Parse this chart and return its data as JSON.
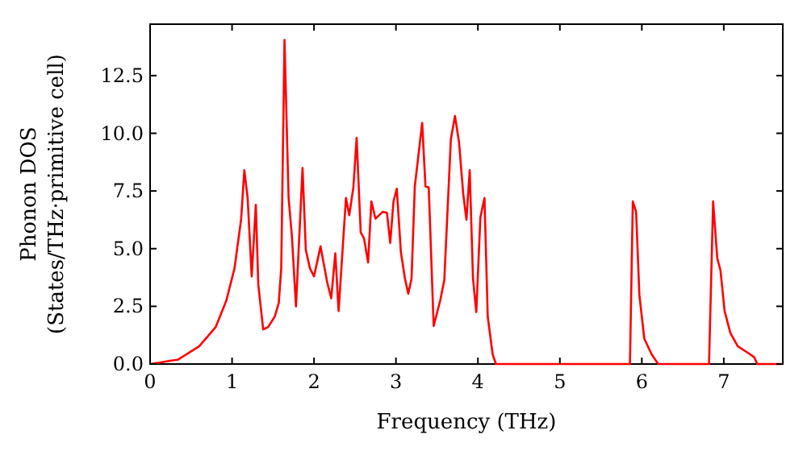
{
  "chart_data": {
    "type": "line",
    "xlabel": "Frequency (THz)",
    "ylabel": "Phonon DOS\n(States/THz·primitive cell)",
    "xlim": [
      0,
      7.72
    ],
    "ylim": [
      0,
      14.73
    ],
    "xticks": [
      0,
      1,
      2,
      3,
      4,
      5,
      6,
      7
    ],
    "yticks": [
      {
        "value": 0,
        "label": "0.0"
      },
      {
        "value": 2.5,
        "label": "2.5"
      },
      {
        "value": 5,
        "label": "5.0"
      },
      {
        "value": 7.5,
        "label": "7.5"
      },
      {
        "value": 10,
        "label": "10.0"
      },
      {
        "value": 12.5,
        "label": "12.5"
      }
    ],
    "grid": false,
    "marker": "none",
    "line_style": "solid",
    "series": [
      {
        "color": "#ff0000",
        "x": [
          0,
          0.34,
          0.6,
          0.8,
          0.93,
          1.03,
          1.11,
          1.15,
          1.19,
          1.24,
          1.29,
          1.32,
          1.38,
          1.44,
          1.52,
          1.57,
          1.6,
          1.64,
          1.69,
          1.73,
          1.78,
          1.86,
          1.9,
          1.95,
          2.0,
          2.08,
          2.16,
          2.21,
          2.26,
          2.3,
          2.39,
          2.43,
          2.48,
          2.52,
          2.57,
          2.61,
          2.66,
          2.7,
          2.75,
          2.84,
          2.89,
          2.93,
          2.97,
          3.01,
          3.06,
          3.11,
          3.15,
          3.19,
          3.23,
          3.32,
          3.36,
          3.4,
          3.46,
          3.54,
          3.59,
          3.67,
          3.72,
          3.77,
          3.82,
          3.86,
          3.9,
          3.94,
          3.98,
          4.03,
          4.08,
          4.12,
          4.18,
          4.22,
          5.855,
          5.89,
          5.93,
          5.97,
          6.03,
          6.12,
          6.2,
          6.82,
          6.87,
          6.92,
          6.96,
          7.01,
          7.08,
          7.17,
          7.3,
          7.37,
          7.41,
          7.7
        ],
        "values": [
          0,
          0.19,
          0.77,
          1.6,
          2.75,
          4.15,
          6.25,
          8.4,
          7.2,
          3.8,
          6.9,
          3.45,
          1.5,
          1.6,
          2.05,
          2.65,
          4.15,
          14.05,
          7.2,
          5.55,
          2.5,
          8.5,
          4.95,
          4.15,
          3.8,
          5.1,
          3.55,
          2.85,
          4.8,
          2.3,
          7.2,
          6.45,
          7.65,
          9.8,
          5.7,
          5.45,
          4.4,
          7.05,
          6.3,
          6.6,
          6.55,
          5.25,
          7.05,
          7.6,
          4.85,
          3.7,
          3.05,
          3.7,
          7.7,
          10.45,
          7.7,
          7.65,
          1.65,
          2.75,
          3.65,
          9.75,
          10.75,
          9.6,
          7.4,
          6.25,
          8.4,
          3.7,
          2.25,
          6.35,
          7.2,
          2.05,
          0.42,
          0,
          0,
          7.05,
          6.6,
          3.0,
          1.1,
          0.42,
          0,
          0,
          7.05,
          4.6,
          4.05,
          2.3,
          1.35,
          0.77,
          0.47,
          0.3,
          0,
          0
        ]
      }
    ]
  }
}
